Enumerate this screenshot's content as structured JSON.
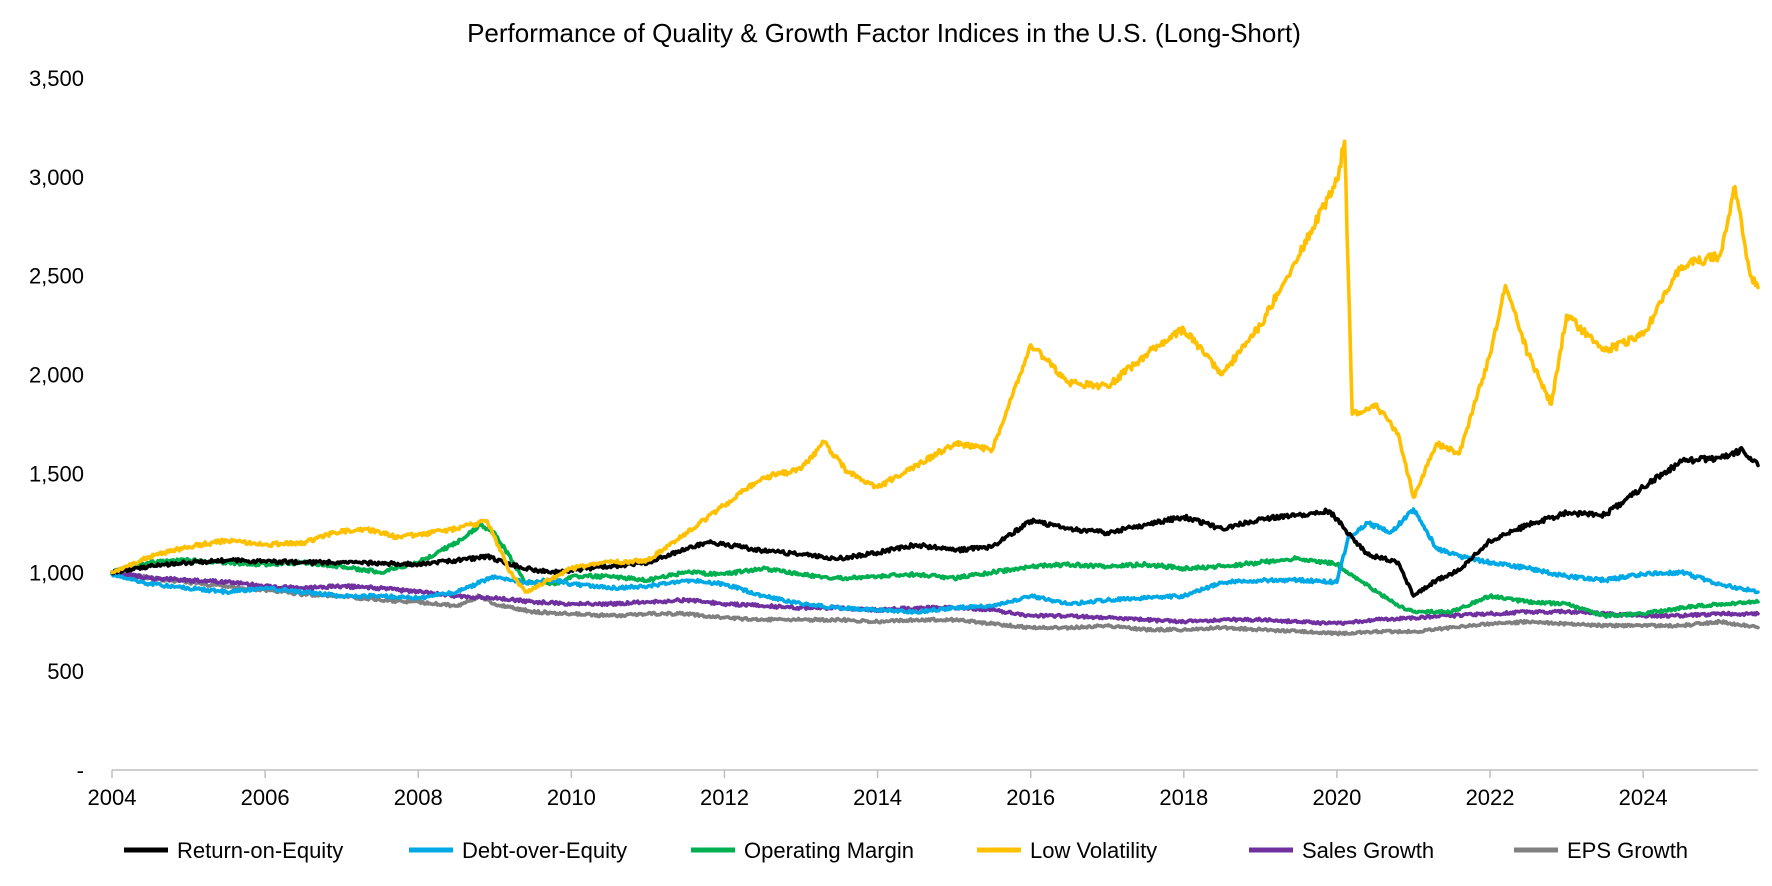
{
  "chart_data": {
    "type": "line",
    "title": "Performance of Quality & Growth Factor Indices in the U.S. (Long-Short)",
    "xlabel": "",
    "ylabel": "",
    "xlim": [
      2004,
      2025.5
    ],
    "ylim": [
      0,
      3500
    ],
    "x_ticks": [
      2004,
      2006,
      2008,
      2010,
      2012,
      2014,
      2016,
      2018,
      2020,
      2022,
      2024
    ],
    "x_tick_labels": [
      "2004",
      "2006",
      "2008",
      "2010",
      "2012",
      "2014",
      "2016",
      "2018",
      "2020",
      "2022",
      "2024"
    ],
    "y_ticks": [
      0,
      500,
      1000,
      1500,
      2000,
      2500,
      3000,
      3500
    ],
    "y_tick_labels": [
      "-",
      "500",
      "1,000",
      "1,500",
      "2,000",
      "2,500",
      "3,000",
      "3,500"
    ],
    "grid": false,
    "legend_position": "bottom",
    "series": [
      {
        "name": "Return-on-Equity",
        "color": "#000000",
        "points": [
          [
            2004.0,
            1000
          ],
          [
            2004.5,
            1030
          ],
          [
            2005.0,
            1050
          ],
          [
            2005.5,
            1060
          ],
          [
            2006.0,
            1055
          ],
          [
            2006.5,
            1050
          ],
          [
            2007.0,
            1050
          ],
          [
            2007.5,
            1045
          ],
          [
            2008.0,
            1040
          ],
          [
            2008.5,
            1060
          ],
          [
            2008.9,
            1080
          ],
          [
            2009.3,
            1030
          ],
          [
            2009.7,
            1000
          ],
          [
            2010.0,
            1010
          ],
          [
            2010.5,
            1030
          ],
          [
            2011.0,
            1050
          ],
          [
            2011.5,
            1120
          ],
          [
            2011.8,
            1150
          ],
          [
            2012.0,
            1140
          ],
          [
            2012.5,
            1110
          ],
          [
            2013.0,
            1090
          ],
          [
            2013.5,
            1070
          ],
          [
            2014.0,
            1100
          ],
          [
            2014.5,
            1140
          ],
          [
            2015.0,
            1110
          ],
          [
            2015.5,
            1130
          ],
          [
            2016.0,
            1260
          ],
          [
            2016.5,
            1220
          ],
          [
            2017.0,
            1200
          ],
          [
            2017.5,
            1240
          ],
          [
            2018.0,
            1280
          ],
          [
            2018.5,
            1220
          ],
          [
            2019.0,
            1270
          ],
          [
            2019.5,
            1290
          ],
          [
            2019.9,
            1310
          ],
          [
            2020.1,
            1220
          ],
          [
            2020.4,
            1090
          ],
          [
            2020.8,
            1050
          ],
          [
            2021.0,
            880
          ],
          [
            2021.3,
            960
          ],
          [
            2021.6,
            1010
          ],
          [
            2022.0,
            1160
          ],
          [
            2022.5,
            1240
          ],
          [
            2023.0,
            1300
          ],
          [
            2023.5,
            1290
          ],
          [
            2024.0,
            1430
          ],
          [
            2024.5,
            1560
          ],
          [
            2025.0,
            1580
          ],
          [
            2025.3,
            1620
          ],
          [
            2025.5,
            1540
          ]
        ]
      },
      {
        "name": "Debt-over-Equity",
        "color": "#00A9E6",
        "points": [
          [
            2004.0,
            990
          ],
          [
            2004.5,
            940
          ],
          [
            2005.0,
            920
          ],
          [
            2005.5,
            900
          ],
          [
            2006.0,
            920
          ],
          [
            2006.5,
            900
          ],
          [
            2007.0,
            880
          ],
          [
            2007.5,
            880
          ],
          [
            2008.0,
            870
          ],
          [
            2008.5,
            900
          ],
          [
            2009.0,
            980
          ],
          [
            2009.4,
            950
          ],
          [
            2009.8,
            960
          ],
          [
            2010.0,
            940
          ],
          [
            2010.5,
            920
          ],
          [
            2011.0,
            930
          ],
          [
            2011.5,
            960
          ],
          [
            2012.0,
            940
          ],
          [
            2012.5,
            880
          ],
          [
            2013.0,
            840
          ],
          [
            2013.5,
            820
          ],
          [
            2014.0,
            810
          ],
          [
            2014.5,
            800
          ],
          [
            2015.0,
            820
          ],
          [
            2015.5,
            830
          ],
          [
            2016.0,
            880
          ],
          [
            2016.5,
            840
          ],
          [
            2017.0,
            860
          ],
          [
            2017.5,
            870
          ],
          [
            2018.0,
            880
          ],
          [
            2018.5,
            950
          ],
          [
            2019.0,
            960
          ],
          [
            2019.5,
            960
          ],
          [
            2020.0,
            950
          ],
          [
            2020.15,
            1180
          ],
          [
            2020.4,
            1250
          ],
          [
            2020.7,
            1200
          ],
          [
            2021.0,
            1320
          ],
          [
            2021.3,
            1120
          ],
          [
            2021.6,
            1080
          ],
          [
            2022.0,
            1050
          ],
          [
            2022.5,
            1020
          ],
          [
            2023.0,
            980
          ],
          [
            2023.5,
            960
          ],
          [
            2024.0,
            990
          ],
          [
            2024.5,
            1000
          ],
          [
            2025.0,
            940
          ],
          [
            2025.5,
            900
          ]
        ]
      },
      {
        "name": "Operating Margin",
        "color": "#00B050",
        "points": [
          [
            2004.0,
            1000
          ],
          [
            2004.5,
            1050
          ],
          [
            2005.0,
            1060
          ],
          [
            2005.5,
            1050
          ],
          [
            2006.0,
            1040
          ],
          [
            2006.5,
            1050
          ],
          [
            2007.0,
            1030
          ],
          [
            2007.5,
            1000
          ],
          [
            2008.0,
            1050
          ],
          [
            2008.5,
            1150
          ],
          [
            2008.8,
            1240
          ],
          [
            2009.0,
            1200
          ],
          [
            2009.4,
            950
          ],
          [
            2009.8,
            940
          ],
          [
            2010.0,
            980
          ],
          [
            2010.5,
            980
          ],
          [
            2011.0,
            960
          ],
          [
            2011.5,
            1000
          ],
          [
            2012.0,
            990
          ],
          [
            2012.5,
            1020
          ],
          [
            2013.0,
            990
          ],
          [
            2013.5,
            970
          ],
          [
            2014.0,
            980
          ],
          [
            2014.5,
            990
          ],
          [
            2015.0,
            970
          ],
          [
            2015.5,
            1000
          ],
          [
            2016.0,
            1030
          ],
          [
            2016.5,
            1040
          ],
          [
            2017.0,
            1030
          ],
          [
            2017.5,
            1040
          ],
          [
            2018.0,
            1020
          ],
          [
            2018.5,
            1030
          ],
          [
            2019.0,
            1050
          ],
          [
            2019.5,
            1070
          ],
          [
            2020.0,
            1040
          ],
          [
            2020.3,
            960
          ],
          [
            2020.8,
            830
          ],
          [
            2021.0,
            800
          ],
          [
            2021.5,
            800
          ],
          [
            2022.0,
            880
          ],
          [
            2022.5,
            850
          ],
          [
            2023.0,
            840
          ],
          [
            2023.5,
            780
          ],
          [
            2024.0,
            790
          ],
          [
            2024.5,
            820
          ],
          [
            2025.0,
            840
          ],
          [
            2025.5,
            850
          ]
        ]
      },
      {
        "name": "Low Volatility",
        "color": "#FFC000",
        "points": [
          [
            2004.0,
            1000
          ],
          [
            2004.2,
            1030
          ],
          [
            2004.5,
            1080
          ],
          [
            2005.0,
            1130
          ],
          [
            2005.5,
            1160
          ],
          [
            2006.0,
            1140
          ],
          [
            2006.5,
            1150
          ],
          [
            2006.9,
            1200
          ],
          [
            2007.3,
            1220
          ],
          [
            2007.7,
            1180
          ],
          [
            2008.0,
            1190
          ],
          [
            2008.5,
            1220
          ],
          [
            2008.9,
            1260
          ],
          [
            2009.2,
            1000
          ],
          [
            2009.4,
            900
          ],
          [
            2009.7,
            960
          ],
          [
            2010.0,
            1020
          ],
          [
            2010.5,
            1050
          ],
          [
            2011.0,
            1060
          ],
          [
            2011.5,
            1200
          ],
          [
            2012.0,
            1340
          ],
          [
            2012.5,
            1480
          ],
          [
            2013.0,
            1520
          ],
          [
            2013.3,
            1660
          ],
          [
            2013.6,
            1510
          ],
          [
            2014.0,
            1430
          ],
          [
            2014.5,
            1540
          ],
          [
            2015.0,
            1650
          ],
          [
            2015.5,
            1620
          ],
          [
            2016.0,
            2150
          ],
          [
            2016.5,
            1960
          ],
          [
            2017.0,
            1940
          ],
          [
            2017.5,
            2100
          ],
          [
            2018.0,
            2230
          ],
          [
            2018.5,
            2000
          ],
          [
            2019.0,
            2250
          ],
          [
            2019.5,
            2600
          ],
          [
            2020.0,
            2980
          ],
          [
            2020.1,
            3180
          ],
          [
            2020.2,
            1800
          ],
          [
            2020.5,
            1850
          ],
          [
            2020.8,
            1700
          ],
          [
            2021.0,
            1380
          ],
          [
            2021.3,
            1650
          ],
          [
            2021.6,
            1600
          ],
          [
            2022.0,
            2100
          ],
          [
            2022.2,
            2450
          ],
          [
            2022.5,
            2100
          ],
          [
            2022.8,
            1850
          ],
          [
            2023.0,
            2300
          ],
          [
            2023.5,
            2120
          ],
          [
            2024.0,
            2200
          ],
          [
            2024.5,
            2550
          ],
          [
            2025.0,
            2600
          ],
          [
            2025.2,
            2950
          ],
          [
            2025.4,
            2500
          ],
          [
            2025.5,
            2440
          ]
        ]
      },
      {
        "name": "Sales Growth",
        "color": "#7030A0",
        "points": [
          [
            2004.0,
            1000
          ],
          [
            2004.5,
            970
          ],
          [
            2005.0,
            960
          ],
          [
            2005.5,
            950
          ],
          [
            2006.0,
            930
          ],
          [
            2006.5,
            920
          ],
          [
            2007.0,
            930
          ],
          [
            2007.5,
            920
          ],
          [
            2008.0,
            900
          ],
          [
            2008.5,
            880
          ],
          [
            2009.0,
            870
          ],
          [
            2009.5,
            850
          ],
          [
            2010.0,
            840
          ],
          [
            2010.5,
            840
          ],
          [
            2011.0,
            850
          ],
          [
            2011.5,
            860
          ],
          [
            2012.0,
            840
          ],
          [
            2012.5,
            830
          ],
          [
            2013.0,
            820
          ],
          [
            2013.5,
            820
          ],
          [
            2014.0,
            810
          ],
          [
            2014.5,
            820
          ],
          [
            2015.0,
            820
          ],
          [
            2015.5,
            810
          ],
          [
            2016.0,
            780
          ],
          [
            2016.5,
            780
          ],
          [
            2017.0,
            770
          ],
          [
            2017.5,
            760
          ],
          [
            2018.0,
            750
          ],
          [
            2018.5,
            760
          ],
          [
            2019.0,
            760
          ],
          [
            2019.5,
            750
          ],
          [
            2020.0,
            740
          ],
          [
            2020.5,
            760
          ],
          [
            2021.0,
            770
          ],
          [
            2021.5,
            780
          ],
          [
            2022.0,
            790
          ],
          [
            2022.5,
            800
          ],
          [
            2023.0,
            800
          ],
          [
            2023.5,
            790
          ],
          [
            2024.0,
            780
          ],
          [
            2024.5,
            780
          ],
          [
            2025.0,
            790
          ],
          [
            2025.5,
            790
          ]
        ]
      },
      {
        "name": "EPS Growth",
        "color": "#808080",
        "points": [
          [
            2004.0,
            1000
          ],
          [
            2004.5,
            970
          ],
          [
            2005.0,
            950
          ],
          [
            2005.5,
            930
          ],
          [
            2006.0,
            910
          ],
          [
            2006.5,
            890
          ],
          [
            2007.0,
            880
          ],
          [
            2007.5,
            860
          ],
          [
            2008.0,
            850
          ],
          [
            2008.5,
            830
          ],
          [
            2008.8,
            880
          ],
          [
            2009.0,
            840
          ],
          [
            2009.5,
            800
          ],
          [
            2010.0,
            790
          ],
          [
            2010.5,
            780
          ],
          [
            2011.0,
            790
          ],
          [
            2011.5,
            790
          ],
          [
            2012.0,
            770
          ],
          [
            2012.5,
            760
          ],
          [
            2013.0,
            760
          ],
          [
            2013.5,
            760
          ],
          [
            2014.0,
            750
          ],
          [
            2014.5,
            760
          ],
          [
            2015.0,
            760
          ],
          [
            2015.5,
            740
          ],
          [
            2016.0,
            720
          ],
          [
            2016.5,
            720
          ],
          [
            2017.0,
            730
          ],
          [
            2017.5,
            710
          ],
          [
            2018.0,
            710
          ],
          [
            2018.5,
            720
          ],
          [
            2019.0,
            710
          ],
          [
            2019.5,
            700
          ],
          [
            2020.0,
            690
          ],
          [
            2020.5,
            700
          ],
          [
            2021.0,
            700
          ],
          [
            2021.5,
            720
          ],
          [
            2022.0,
            740
          ],
          [
            2022.5,
            750
          ],
          [
            2023.0,
            740
          ],
          [
            2023.5,
            730
          ],
          [
            2024.0,
            730
          ],
          [
            2024.5,
            730
          ],
          [
            2025.0,
            750
          ],
          [
            2025.5,
            720
          ]
        ]
      }
    ]
  }
}
